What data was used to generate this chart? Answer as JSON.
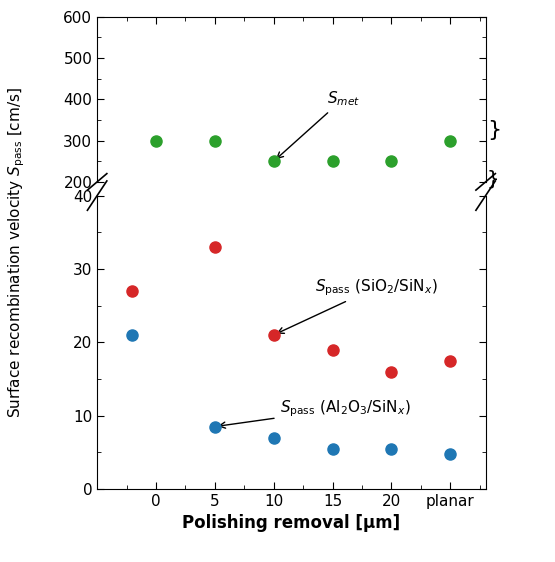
{
  "x_ticks_pos": [
    0,
    5,
    10,
    15,
    20,
    25
  ],
  "x_ticks_labels": [
    "0",
    "5",
    "10",
    "15",
    "20",
    "planar"
  ],
  "xlabel": "Polishing removal [μm]",
  "green_x": [
    0,
    5,
    10,
    15,
    20,
    25
  ],
  "green_y": [
    300,
    300,
    250,
    250,
    250,
    300
  ],
  "red_x": [
    -2,
    5,
    10,
    15,
    20,
    25
  ],
  "red_y": [
    27,
    33,
    21,
    19,
    16,
    17.5
  ],
  "blue_x": [
    -2,
    5,
    10,
    15,
    20,
    25
  ],
  "blue_y": [
    21,
    8.5,
    7,
    5.5,
    5.5,
    4.8
  ],
  "green_color": "#2ca02c",
  "red_color": "#d62728",
  "blue_color": "#1f77b4",
  "upper_ylim": [
    200,
    600
  ],
  "lower_ylim": [
    0,
    40
  ],
  "upper_yticks": [
    200,
    300,
    400,
    500,
    600
  ],
  "lower_yticks": [
    0,
    10,
    20,
    30,
    40
  ],
  "xlim": [
    -5,
    28
  ]
}
